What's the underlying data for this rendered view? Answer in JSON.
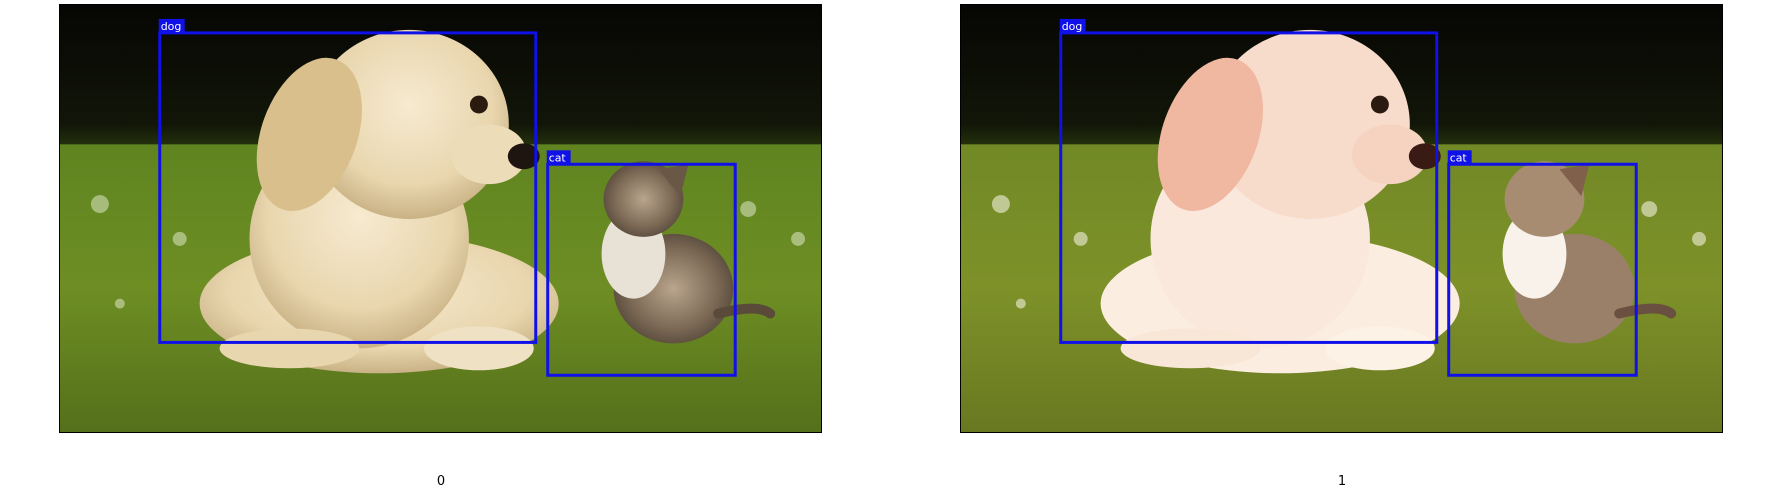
{
  "panels": [
    {
      "caption": "0",
      "filter": "normal",
      "detections": [
        {
          "label": "dog"
        },
        {
          "label": "cat"
        }
      ]
    },
    {
      "caption": "1",
      "filter": "warm-brightened",
      "detections": [
        {
          "label": "dog"
        },
        {
          "label": "cat"
        }
      ]
    }
  ],
  "colors": {
    "box_stroke": "#1010e8",
    "label_bg": "#1010e8",
    "label_text": "#ffffff",
    "grass_light": "#7a9a2a",
    "grass_dark": "#3e5a12",
    "background_dark": "#0a0a05"
  }
}
